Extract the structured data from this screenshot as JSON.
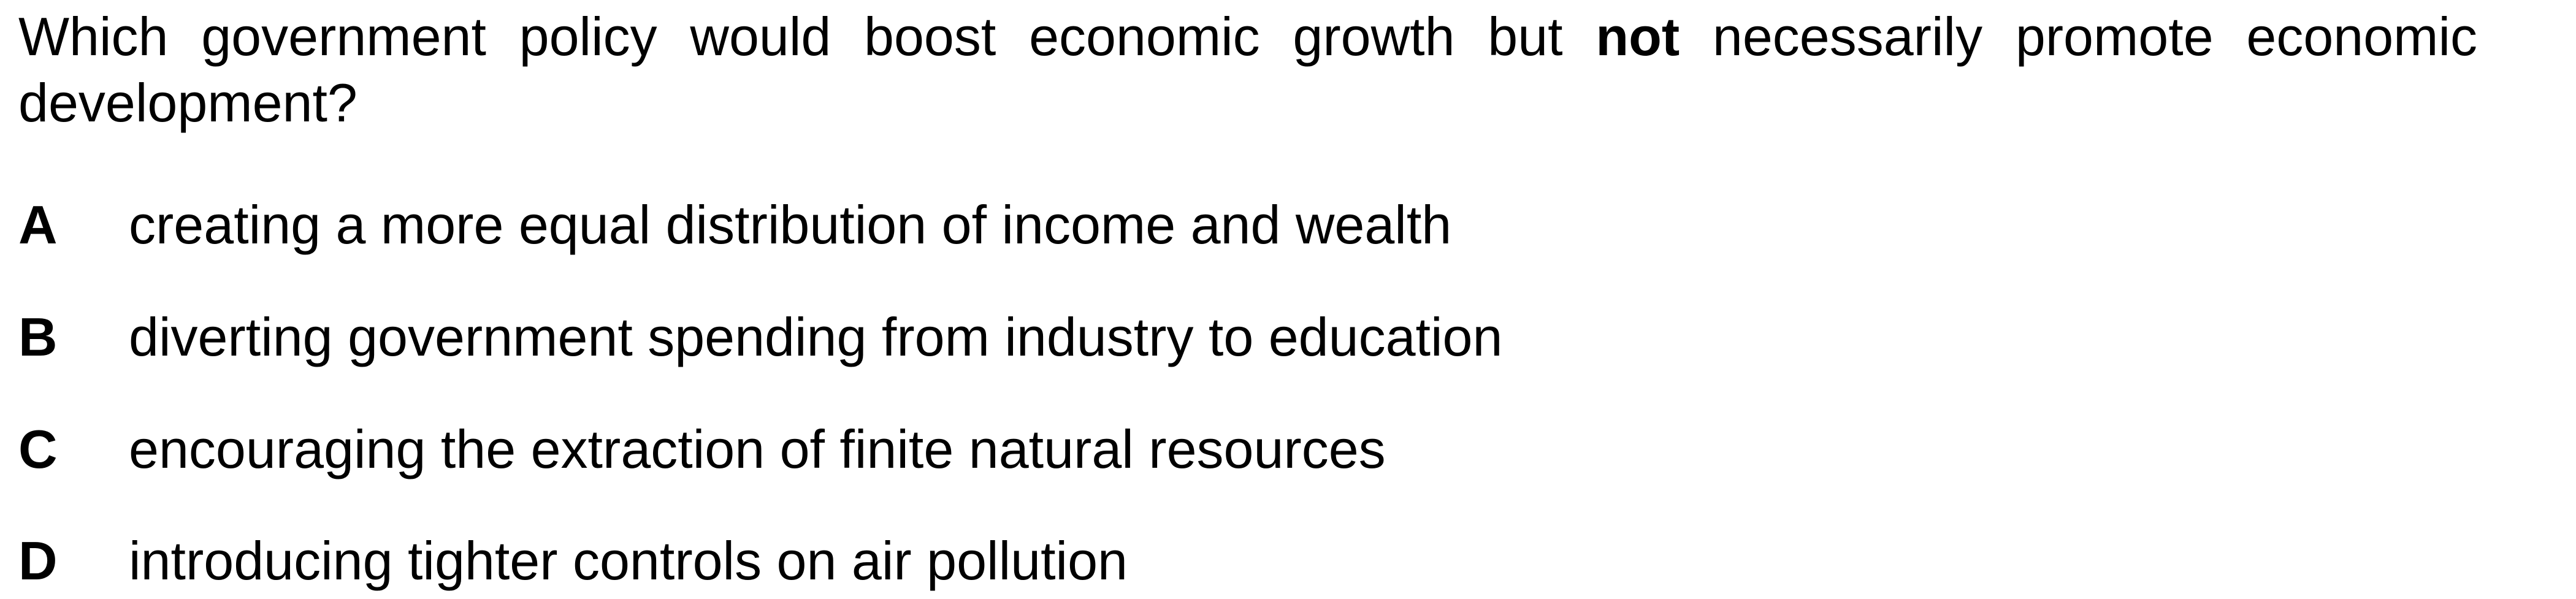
{
  "question": {
    "text_before": "Which government policy would boost economic growth but ",
    "emphasis": "not",
    "text_after": " necessarily promote economic development?"
  },
  "options": [
    {
      "letter": "A",
      "text": "creating a more equal distribution of income and wealth"
    },
    {
      "letter": "B",
      "text": "diverting government spending from industry to education"
    },
    {
      "letter": "C",
      "text": "encouraging the extraction of finite natural resources"
    },
    {
      "letter": "D",
      "text": "introducing tighter controls on air pollution"
    }
  ]
}
